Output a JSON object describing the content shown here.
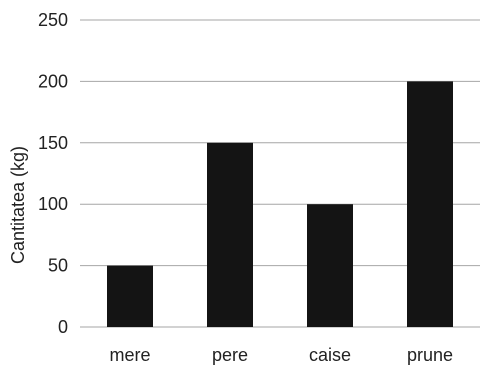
{
  "chart_data": {
    "type": "bar",
    "title": "",
    "xlabel": "",
    "ylabel": "Cantitatea (kg)",
    "categories": [
      "mere",
      "pere",
      "caise",
      "prune"
    ],
    "values": [
      50,
      150,
      100,
      200
    ],
    "ylim": [
      0,
      250
    ],
    "yticks": [
      0,
      50,
      100,
      150,
      200,
      250
    ],
    "grid": "horizontal",
    "legend": "none",
    "bar_color": "#141414",
    "grid_color": "#a6a6a6"
  }
}
